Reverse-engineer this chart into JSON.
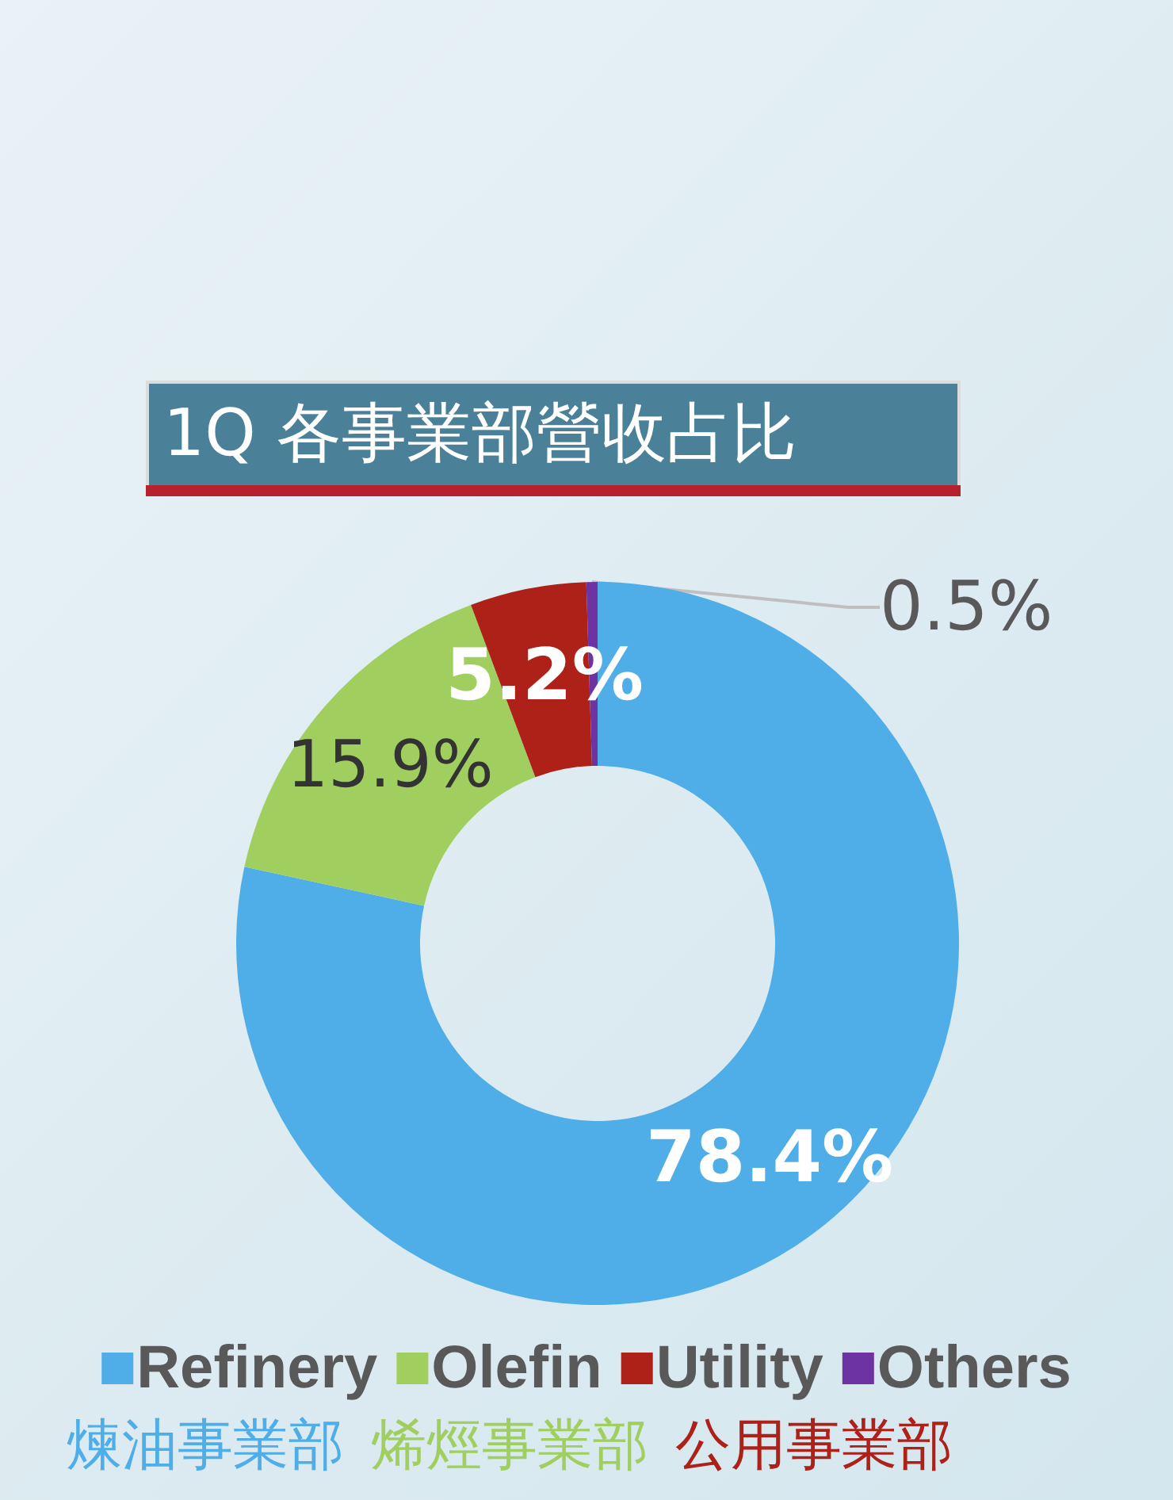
{
  "chart_data": {
    "type": "donut",
    "title": "1Q 各事業部營收占比",
    "categories": [
      "Refinery",
      "Olefin",
      "Utility",
      "Others"
    ],
    "values": [
      78.4,
      15.9,
      5.2,
      0.5
    ],
    "colors": [
      "#4faee8",
      "#a0cf60",
      "#ae2118",
      "#6e33a2"
    ],
    "value_labels": [
      "78.4%",
      "15.9%",
      "5.2%",
      "0.5%"
    ],
    "legend": "bottom",
    "annotations": [
      "煉油事業部",
      "烯烴事業部",
      "公用事業部"
    ]
  }
}
